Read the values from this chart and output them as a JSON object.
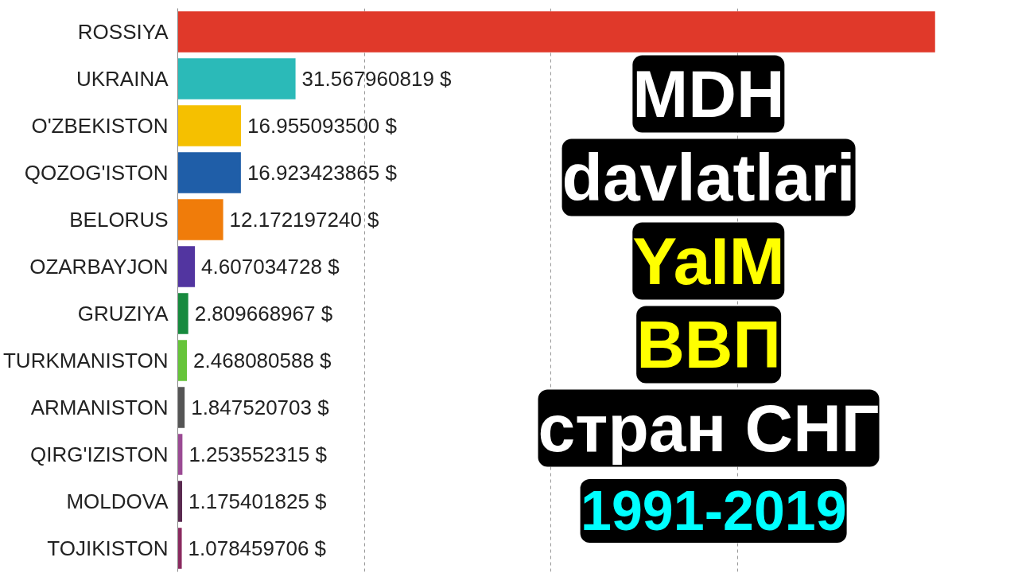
{
  "chart_data": {
    "type": "bar",
    "orientation": "horizontal",
    "categories": [
      "ROSSIYA",
      "UKRAINA",
      "O'ZBEKISTON",
      "QOZOG'ISTON",
      "BELORUS",
      "OZARBAYJON",
      "GRUZIYA",
      "TURKMANISTON",
      "ARMANISTON",
      "QIRG'IZISTON",
      "MOLDOVA",
      "TOJIKISTON"
    ],
    "values": [
      203,
      31.567960819,
      16.9550935,
      16.923423865,
      12.17219724,
      4.607034728,
      2.809668967,
      2.468080588,
      1.847520703,
      1.253552315,
      1.175401825,
      1.078459706
    ],
    "value_labels": [
      null,
      "31.567960819 $",
      "16.955093500 $",
      "16.923423865 $",
      "12.172197240 $",
      "4.607034728 $",
      "2.809668967 $",
      "2.468080588 $",
      "1.847520703 $",
      "1.253552315 $",
      "1.175401825 $",
      "1.078459706 $"
    ],
    "colors": [
      "#e0392a",
      "#2bbab8",
      "#f5c000",
      "#1f5ea8",
      "#f07c0a",
      "#5235a0",
      "#178a3e",
      "#66c43a",
      "#555555",
      "#9b4a94",
      "#5a2a50",
      "#8a2a60"
    ],
    "xticks": [
      {
        "value": 50,
        "label": null
      },
      {
        "value": 100,
        "label": null
      },
      {
        "value": 150,
        "label": null
      }
    ],
    "grid": "x",
    "tick_labels": "y",
    "annotations": [
      "MDH",
      "davlatlari",
      "YaIM",
      "ВВП",
      "стран СНГ",
      "1991-2019"
    ]
  }
}
